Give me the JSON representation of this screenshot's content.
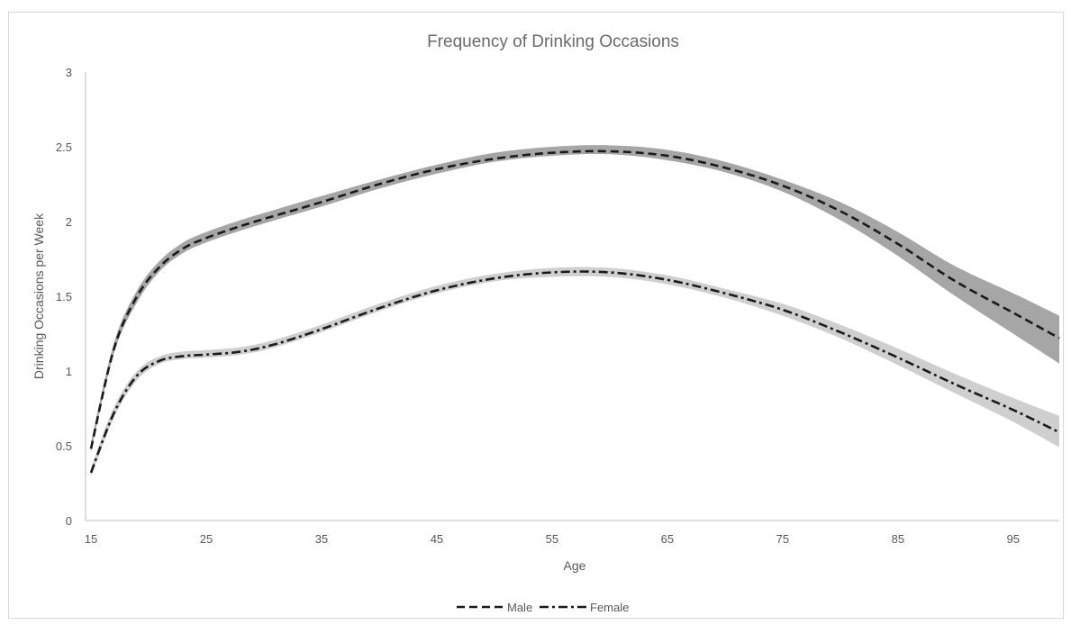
{
  "chart_data": {
    "type": "line",
    "title": "Frequency of Drinking Occasions",
    "xlabel": "Age",
    "ylabel": "Drinking Occasions per Week",
    "xlim": [
      15,
      99
    ],
    "ylim": [
      0,
      3
    ],
    "x_ticks": [
      "15",
      "25",
      "35",
      "45",
      "55",
      "65",
      "75",
      "85",
      "95"
    ],
    "y_ticks": [
      "0",
      "0.5",
      "1",
      "1.5",
      "2",
      "2.5",
      "3"
    ],
    "grid": false,
    "legend_position": "bottom",
    "x": [
      15,
      17,
      19,
      21,
      23,
      25,
      28,
      31,
      35,
      40,
      45,
      50,
      55,
      60,
      65,
      70,
      75,
      80,
      85,
      90,
      95,
      99
    ],
    "series": [
      {
        "name": "Male",
        "style": "dashed",
        "line_color": "#1a1a1a",
        "band_color": "#a6a6a6",
        "values": [
          0.48,
          1.15,
          1.5,
          1.7,
          1.82,
          1.89,
          1.97,
          2.04,
          2.13,
          2.25,
          2.35,
          2.42,
          2.46,
          2.47,
          2.44,
          2.36,
          2.24,
          2.07,
          1.85,
          1.6,
          1.39,
          1.22
        ],
        "lower": [
          0.46,
          1.12,
          1.46,
          1.67,
          1.79,
          1.86,
          1.94,
          2.01,
          2.1,
          2.22,
          2.32,
          2.4,
          2.44,
          2.45,
          2.41,
          2.33,
          2.2,
          2.01,
          1.77,
          1.5,
          1.25,
          1.05
        ],
        "upper": [
          0.52,
          1.19,
          1.54,
          1.74,
          1.86,
          1.93,
          2.01,
          2.08,
          2.17,
          2.28,
          2.38,
          2.46,
          2.5,
          2.51,
          2.48,
          2.4,
          2.28,
          2.13,
          1.93,
          1.7,
          1.52,
          1.37
        ]
      },
      {
        "name": "Female",
        "style": "dash-dot",
        "line_color": "#1a1a1a",
        "band_color": "#cfcfcf",
        "values": [
          0.32,
          0.72,
          0.97,
          1.07,
          1.1,
          1.11,
          1.13,
          1.18,
          1.28,
          1.42,
          1.54,
          1.62,
          1.66,
          1.66,
          1.61,
          1.52,
          1.41,
          1.26,
          1.09,
          0.91,
          0.74,
          0.59
        ],
        "lower": [
          0.29,
          0.69,
          0.94,
          1.05,
          1.08,
          1.09,
          1.11,
          1.16,
          1.26,
          1.4,
          1.52,
          1.6,
          1.63,
          1.63,
          1.58,
          1.49,
          1.37,
          1.22,
          1.04,
          0.85,
          0.66,
          0.49
        ],
        "upper": [
          0.35,
          0.76,
          1.0,
          1.1,
          1.13,
          1.14,
          1.16,
          1.21,
          1.31,
          1.45,
          1.57,
          1.65,
          1.69,
          1.69,
          1.64,
          1.55,
          1.45,
          1.31,
          1.15,
          0.98,
          0.82,
          0.7
        ]
      }
    ]
  }
}
